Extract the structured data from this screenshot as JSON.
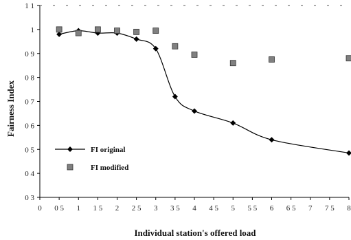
{
  "chart_data": {
    "type": "scatter",
    "xlabel": "Individual station's offered load",
    "ylabel": "Fairness Index",
    "xlim": [
      0,
      8
    ],
    "ylim": [
      0.3,
      1.1
    ],
    "x_ticks": [
      "0",
      "0 5",
      "1",
      "1 5",
      "2",
      "2 5",
      "3",
      "3 5",
      "4",
      "4 5",
      "5",
      "5 5",
      "6",
      "6 5",
      "7",
      "7 5",
      "8"
    ],
    "y_ticks": [
      "0 3",
      "0 4",
      "0 5",
      "0 6",
      "0 7",
      "0 8",
      "0 9",
      "1",
      "1 1"
    ],
    "legend_position": "left",
    "grid": false,
    "series": [
      {
        "name": "FI original",
        "style": "line-diamond",
        "color": "#000000",
        "x": [
          0.5,
          1,
          1.5,
          2,
          2.5,
          3,
          3.5,
          4,
          5,
          6,
          8
        ],
        "y": [
          0.98,
          0.995,
          0.985,
          0.985,
          0.96,
          0.92,
          0.72,
          0.66,
          0.61,
          0.54,
          0.485
        ]
      },
      {
        "name": "FI modified",
        "style": "square-markers",
        "color": "#808080",
        "x": [
          0.5,
          1,
          1.5,
          2,
          2.5,
          3,
          3.5,
          4,
          5,
          6,
          8
        ],
        "y": [
          1.0,
          0.985,
          1.0,
          0.995,
          0.99,
          0.995,
          0.93,
          0.895,
          0.86,
          0.875,
          0.88
        ]
      }
    ],
    "legend": [
      {
        "label": "FI original"
      },
      {
        "label": "FI modified"
      }
    ]
  }
}
